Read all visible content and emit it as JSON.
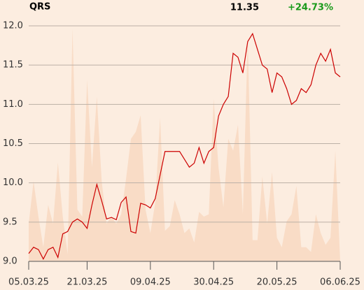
{
  "chart_data": {
    "type": "line",
    "title": "QRS",
    "price": "11.35",
    "change": "+24.73%",
    "change_color": "#1a9a1a",
    "categories": [
      "05.03.25",
      null,
      null,
      null,
      null,
      null,
      null,
      null,
      null,
      null,
      null,
      null,
      "21.03.25",
      null,
      null,
      null,
      null,
      null,
      null,
      null,
      null,
      null,
      null,
      null,
      null,
      "09.04.25",
      null,
      null,
      null,
      null,
      null,
      null,
      null,
      null,
      null,
      null,
      null,
      null,
      "30.04.25",
      null,
      null,
      null,
      null,
      null,
      null,
      null,
      null,
      null,
      null,
      null,
      null,
      "20.05.25",
      null,
      null,
      null,
      null,
      null,
      null,
      null,
      null,
      null,
      null,
      null,
      null,
      "06.06.25"
    ],
    "series": [
      {
        "type": "line",
        "color": "#cc0000",
        "values": [
          9.1,
          9.18,
          9.15,
          9.03,
          9.15,
          9.18,
          9.05,
          9.35,
          9.38,
          9.5,
          9.54,
          9.5,
          9.42,
          9.72,
          9.98,
          9.77,
          9.54,
          9.56,
          9.53,
          9.75,
          9.82,
          9.38,
          9.36,
          9.74,
          9.72,
          9.68,
          9.8,
          10.1,
          10.4,
          10.4,
          10.4,
          10.4,
          10.3,
          10.2,
          10.25,
          10.45,
          10.25,
          10.4,
          10.45,
          10.85,
          11.0,
          11.1,
          11.65,
          11.6,
          11.4,
          11.8,
          11.9,
          11.7,
          11.5,
          11.45,
          11.15,
          11.4,
          11.35,
          11.2,
          11.0,
          11.05,
          11.2,
          11.15,
          11.25,
          11.5,
          11.65,
          11.55,
          11.7,
          11.4,
          11.35
        ]
      },
      {
        "type": "area",
        "axis": "y2",
        "color": "#f9dcc6",
        "values": [
          16,
          34,
          19,
          6,
          24,
          16,
          42,
          19,
          3,
          99,
          22,
          19,
          77,
          40,
          70,
          34,
          16,
          19,
          16,
          20,
          35,
          52,
          55,
          62,
          22,
          12,
          25,
          61,
          13,
          15,
          26,
          20,
          12,
          14,
          8,
          21,
          19,
          20,
          69,
          40,
          23,
          52,
          47,
          58,
          20,
          95,
          9,
          9,
          36,
          16,
          38,
          10,
          6,
          17,
          20,
          32,
          6,
          6,
          4,
          20,
          12,
          7,
          10,
          47,
          0
        ]
      }
    ],
    "ylim": [
      9.0,
      12.0
    ],
    "yticks": [
      {
        "value": 9.0,
        "label": "9.0"
      },
      {
        "value": 9.5,
        "label": "9.5"
      },
      {
        "value": 10.0,
        "label": "10.0"
      },
      {
        "value": 10.5,
        "label": "10.5"
      },
      {
        "value": 11.0,
        "label": "11.0"
      },
      {
        "value": 11.5,
        "label": "11.5"
      },
      {
        "value": 12.0,
        "label": "12.0"
      }
    ],
    "y2lim": [
      0,
      100
    ],
    "grid": true
  }
}
